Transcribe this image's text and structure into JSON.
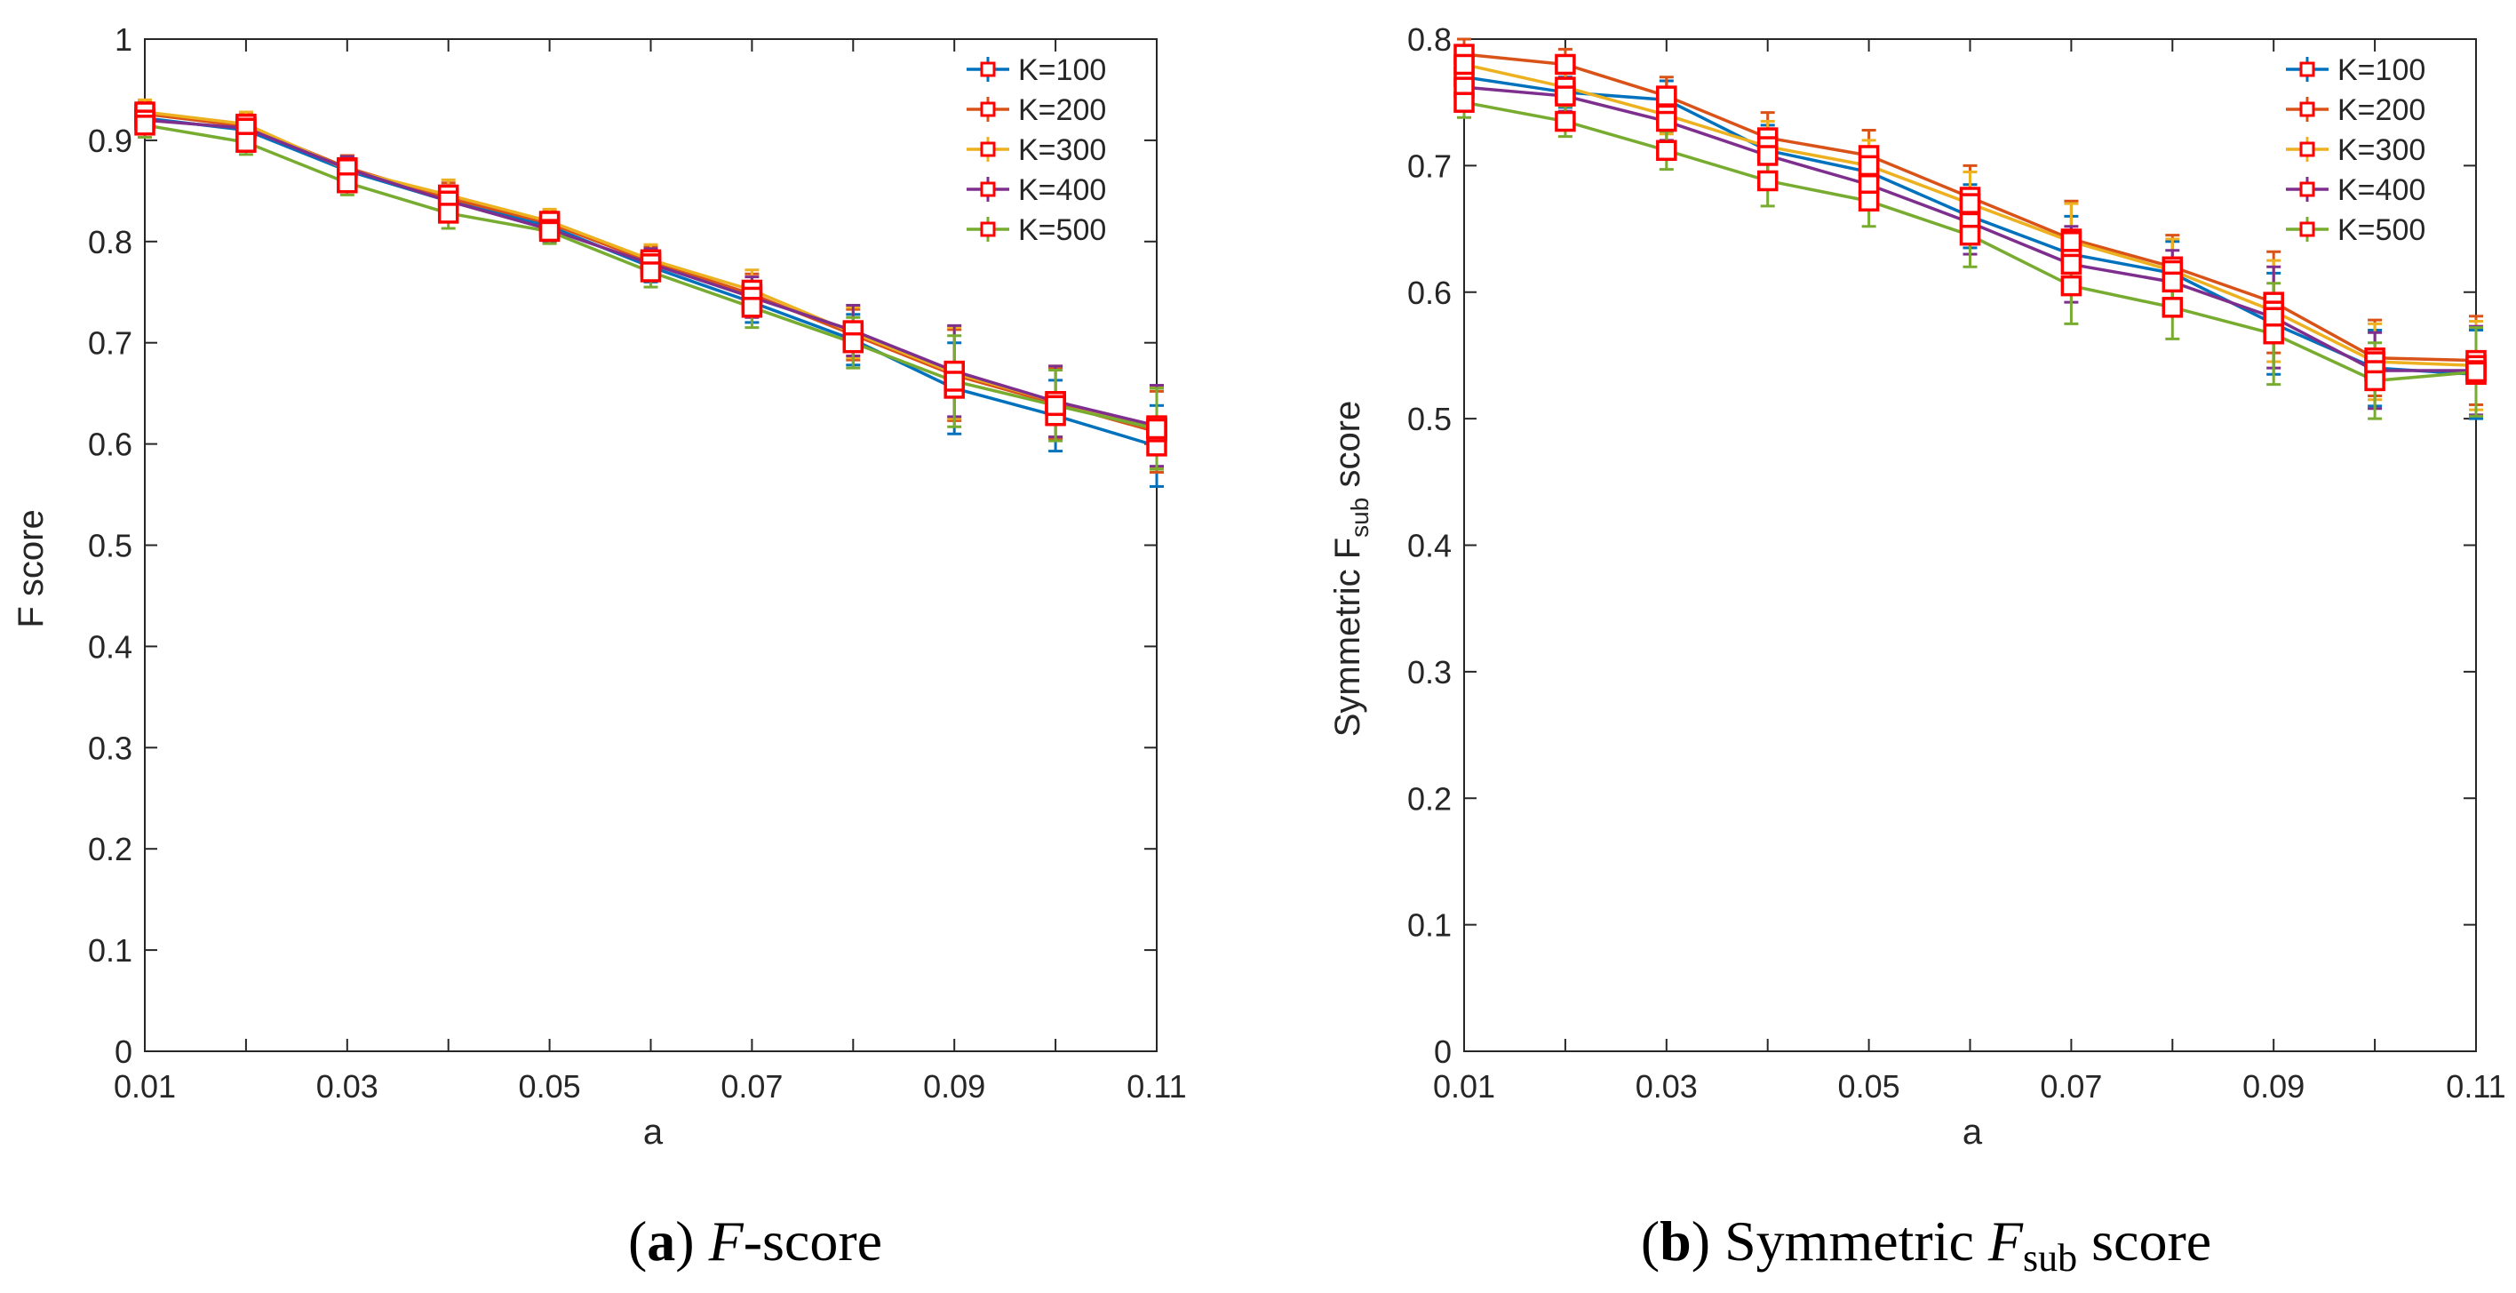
{
  "chart_data": [
    {
      "type": "line",
      "panel": "a",
      "xlabel": "a",
      "ylabel": "F score",
      "xlim": [
        0.01,
        0.11
      ],
      "ylim": [
        0,
        1
      ],
      "xticks": [
        "0.01",
        "0.03",
        "0.05",
        "0.07",
        "0.09",
        "0.11"
      ],
      "yticks": [
        "0",
        "0.1",
        "0.2",
        "0.3",
        "0.4",
        "0.5",
        "0.6",
        "0.7",
        "0.8",
        "0.9",
        "1"
      ],
      "grid": false,
      "legend": "top-right",
      "error_bars": true,
      "x": [
        0.01,
        0.02,
        0.03,
        0.04,
        0.05,
        0.06,
        0.07,
        0.08,
        0.09,
        0.1,
        0.11
      ],
      "series": [
        {
          "name": "K=100",
          "color": "#0072BD",
          "values": [
            0.922,
            0.91,
            0.87,
            0.84,
            0.815,
            0.775,
            0.74,
            0.703,
            0.655,
            0.628,
            0.598
          ],
          "err": [
            0.012,
            0.012,
            0.012,
            0.015,
            0.012,
            0.015,
            0.02,
            0.025,
            0.045,
            0.035,
            0.04
          ]
        },
        {
          "name": "K=200",
          "color": "#D95319",
          "values": [
            0.926,
            0.914,
            0.873,
            0.843,
            0.818,
            0.78,
            0.748,
            0.708,
            0.668,
            0.64,
            0.612
          ],
          "err": [
            0.012,
            0.012,
            0.012,
            0.015,
            0.012,
            0.015,
            0.02,
            0.025,
            0.045,
            0.035,
            0.04
          ]
        },
        {
          "name": "K=300",
          "color": "#EDB120",
          "values": [
            0.928,
            0.916,
            0.871,
            0.846,
            0.82,
            0.782,
            0.752,
            0.71,
            0.67,
            0.642,
            0.616
          ],
          "err": [
            0.012,
            0.012,
            0.012,
            0.015,
            0.012,
            0.015,
            0.02,
            0.025,
            0.045,
            0.035,
            0.04
          ]
        },
        {
          "name": "K=400",
          "color": "#7E2F8E",
          "values": [
            0.92,
            0.912,
            0.872,
            0.84,
            0.812,
            0.778,
            0.745,
            0.712,
            0.672,
            0.642,
            0.618
          ],
          "err": [
            0.012,
            0.012,
            0.012,
            0.015,
            0.012,
            0.015,
            0.02,
            0.025,
            0.045,
            0.035,
            0.04
          ]
        },
        {
          "name": "K=500",
          "color": "#77AC30",
          "values": [
            0.915,
            0.898,
            0.858,
            0.828,
            0.81,
            0.77,
            0.735,
            0.7,
            0.662,
            0.638,
            0.615
          ],
          "err": [
            0.012,
            0.012,
            0.012,
            0.015,
            0.012,
            0.015,
            0.02,
            0.025,
            0.045,
            0.035,
            0.04
          ]
        }
      ]
    },
    {
      "type": "line",
      "panel": "b",
      "xlabel": "a",
      "ylabel_main": "Symmetric F",
      "ylabel_sub": "sub",
      "ylabel_end": " score",
      "xlim": [
        0.01,
        0.11
      ],
      "ylim": [
        0,
        0.8
      ],
      "xticks": [
        "0.01",
        "0.03",
        "0.05",
        "0.07",
        "0.09",
        "0.11"
      ],
      "yticks": [
        "0",
        "0.1",
        "0.2",
        "0.3",
        "0.4",
        "0.5",
        "0.6",
        "0.7",
        "0.8"
      ],
      "grid": false,
      "legend": "top-right",
      "error_bars": true,
      "x": [
        0.01,
        0.02,
        0.03,
        0.04,
        0.05,
        0.06,
        0.07,
        0.08,
        0.09,
        0.1,
        0.11
      ],
      "series": [
        {
          "name": "K=100",
          "color": "#0072BD",
          "values": [
            0.77,
            0.758,
            0.752,
            0.712,
            0.695,
            0.66,
            0.63,
            0.615,
            0.575,
            0.54,
            0.535
          ],
          "err": [
            0.012,
            0.012,
            0.015,
            0.02,
            0.02,
            0.025,
            0.03,
            0.025,
            0.04,
            0.03,
            0.035
          ]
        },
        {
          "name": "K=200",
          "color": "#D95319",
          "values": [
            0.788,
            0.78,
            0.755,
            0.722,
            0.708,
            0.675,
            0.642,
            0.62,
            0.592,
            0.548,
            0.546
          ],
          "err": [
            0.012,
            0.012,
            0.015,
            0.02,
            0.02,
            0.025,
            0.03,
            0.025,
            0.04,
            0.03,
            0.035
          ]
        },
        {
          "name": "K=300",
          "color": "#EDB120",
          "values": [
            0.78,
            0.762,
            0.74,
            0.715,
            0.7,
            0.67,
            0.64,
            0.617,
            0.585,
            0.545,
            0.542
          ],
          "err": [
            0.012,
            0.012,
            0.015,
            0.02,
            0.02,
            0.025,
            0.03,
            0.025,
            0.04,
            0.03,
            0.035
          ]
        },
        {
          "name": "K=400",
          "color": "#7E2F8E",
          "values": [
            0.762,
            0.755,
            0.735,
            0.708,
            0.685,
            0.655,
            0.622,
            0.608,
            0.58,
            0.538,
            0.538
          ],
          "err": [
            0.012,
            0.012,
            0.015,
            0.02,
            0.02,
            0.025,
            0.03,
            0.025,
            0.04,
            0.03,
            0.035
          ]
        },
        {
          "name": "K=500",
          "color": "#77AC30",
          "values": [
            0.75,
            0.735,
            0.712,
            0.688,
            0.672,
            0.645,
            0.605,
            0.588,
            0.567,
            0.53,
            0.537
          ],
          "err": [
            0.012,
            0.012,
            0.015,
            0.02,
            0.02,
            0.025,
            0.03,
            0.025,
            0.04,
            0.03,
            0.035
          ]
        }
      ]
    }
  ],
  "captions": {
    "a": {
      "tag": "a",
      "italic": "F",
      "rest": "-score"
    },
    "b": {
      "tag": "b",
      "text": "Symmetric ",
      "italic": "F",
      "sub": "sub",
      "end": " score"
    }
  },
  "marker_color": "#FF0000"
}
